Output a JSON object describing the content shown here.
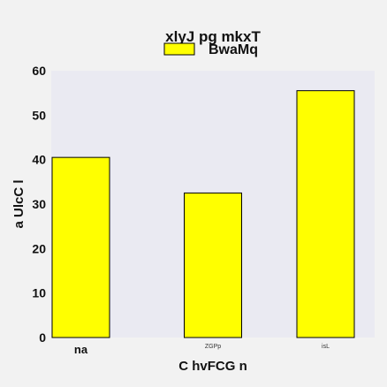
{
  "chart_data": {
    "type": "bar",
    "title": "xlyJ pg mkxT",
    "xlabel": "C  hvFCG n",
    "ylabel": "a UlcC l",
    "categories": [
      "na",
      "ZGPp",
      "isL"
    ],
    "series": [
      {
        "name": "BwaMq",
        "values": [
          40.5,
          32.5,
          55.5
        ]
      }
    ],
    "ylim": [
      0,
      60
    ],
    "yticks": [
      0,
      10,
      20,
      30,
      40,
      50,
      60
    ],
    "grid": false,
    "legend": "top-center",
    "colors": {
      "bar": "#ffff00",
      "bar_edge": "#000000",
      "plot_bg": "#eaeaf2",
      "figure_bg": "#f2f2f2"
    }
  }
}
